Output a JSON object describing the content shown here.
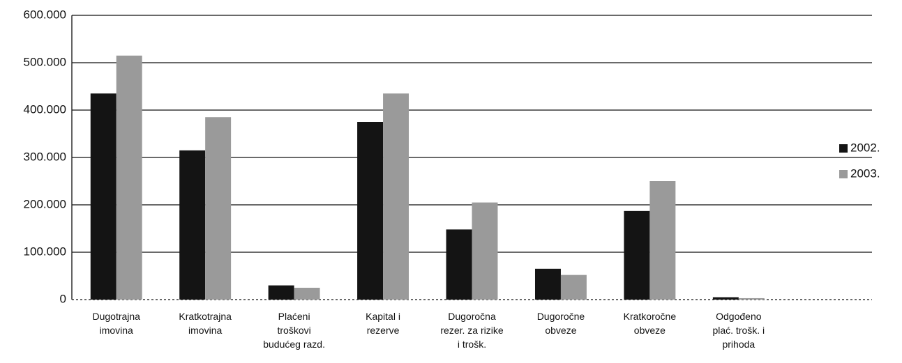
{
  "chart_data": {
    "type": "bar",
    "categories": [
      "Dugotrajna\nimovina",
      "Kratkotrajna\nimovina",
      "Plaćeni\ntroškovi\nbudućeg razd.",
      "Kapital i\nrezerve",
      "Dugoročna\nrezer. za rizike\ni trošk.",
      "Dugoročne\nobveze",
      "Kratkoročne\nobveze",
      "Odgođeno\nplać. trošk. i\nprihoda",
      null
    ],
    "series": [
      {
        "name": "2002.",
        "color": "#141414",
        "values": [
          435000,
          315000,
          30000,
          375000,
          148000,
          65000,
          187000,
          5000,
          null
        ]
      },
      {
        "name": "2003.",
        "color": "#9a9a9a",
        "values": [
          515000,
          385000,
          25000,
          435000,
          205000,
          52000,
          250000,
          3000,
          null
        ]
      }
    ],
    "ylim": [
      0,
      600000
    ],
    "yticks": [
      0,
      {
        "value": 100000,
        "label": "100.000"
      },
      {
        "value": 200000,
        "label": "200.000"
      },
      {
        "value": 300000,
        "label": "300.000"
      },
      {
        "value": 400000,
        "label": "400.000"
      },
      {
        "value": 500000,
        "label": "500.000"
      },
      {
        "value": 600000,
        "label": "600.000"
      }
    ],
    "grid": true,
    "legend": "right"
  }
}
